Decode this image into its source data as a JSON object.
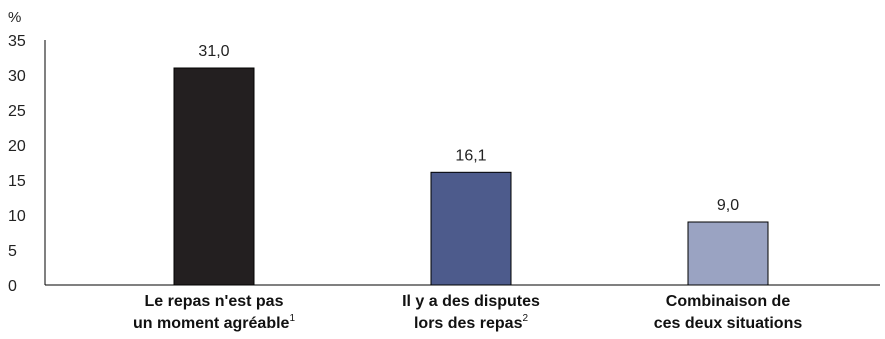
{
  "chart_data": {
    "type": "bar",
    "unit_label": "%",
    "ylim": [
      0,
      35
    ],
    "yticks": [
      0,
      5,
      10,
      15,
      20,
      25,
      30,
      35
    ],
    "grid": false,
    "categories": [
      {
        "lines": [
          "Le repas n'est pas",
          "un moment agréable"
        ],
        "note": "1"
      },
      {
        "lines": [
          "Il y a des disputes",
          "lors des repas"
        ],
        "note": "2"
      },
      {
        "lines": [
          "Combinaison de",
          "ces deux situations"
        ],
        "note": ""
      }
    ],
    "values": [
      31.0,
      16.1,
      9.0
    ],
    "value_labels": [
      "31,0",
      "16,1",
      "9,0"
    ],
    "colors": [
      "#231f20",
      "#4d5b8c",
      "#9aa3c2"
    ]
  }
}
